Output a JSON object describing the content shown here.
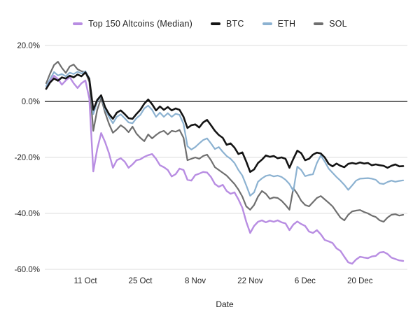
{
  "chart_data": {
    "type": "line",
    "xlabel": "Date",
    "ylabel": "",
    "ylim": [
      -60,
      20
    ],
    "grid": true,
    "legend_position": "top-center",
    "background": "#ffffff",
    "gridline_color": "#dcdcdc",
    "zeroline_color": "#555555",
    "tick_text_color": "#262626",
    "y_ticks": [
      {
        "value": 20,
        "label": "20.0%"
      },
      {
        "value": 0,
        "label": "0.0%"
      },
      {
        "value": -20,
        "label": "-20.0%"
      },
      {
        "value": -40,
        "label": "-40.0%"
      },
      {
        "value": -60,
        "label": "-60.0%"
      }
    ],
    "x_ticks": [
      {
        "day": 10,
        "label": "11 Oct"
      },
      {
        "day": 24,
        "label": "25 Oct"
      },
      {
        "day": 38,
        "label": "8 Nov"
      },
      {
        "day": 52,
        "label": "22 Nov"
      },
      {
        "day": 66,
        "label": "6 Dec"
      },
      {
        "day": 80,
        "label": "20 Dec"
      }
    ],
    "x_range_note": "daily values, day 0 = 1 Oct through day 91 = 31 Dec, percent change",
    "series": [
      {
        "key": "altcoins",
        "name": "Top 150 Altcoins (Median)",
        "color": "#b88de2",
        "width": 2.4,
        "values": [
          4.5,
          7.0,
          9.2,
          8.0,
          6.0,
          7.5,
          8.7,
          6.5,
          4.8,
          6.5,
          7.5,
          1.0,
          -25.0,
          -17.0,
          -11.3,
          -14.5,
          -18.5,
          -23.7,
          -21.0,
          -20.3,
          -21.5,
          -23.7,
          -22.5,
          -21.0,
          -20.7,
          -19.8,
          -19.2,
          -18.8,
          -20.5,
          -22.8,
          -23.5,
          -24.5,
          -26.8,
          -26.0,
          -24.0,
          -24.5,
          -28.0,
          -28.3,
          -26.3,
          -25.8,
          -25.2,
          -25.4,
          -27.0,
          -29.5,
          -30.5,
          -29.8,
          -32.0,
          -33.0,
          -32.5,
          -35.0,
          -38.0,
          -43.0,
          -47.0,
          -44.5,
          -43.0,
          -42.5,
          -43.2,
          -42.6,
          -43.0,
          -42.5,
          -43.2,
          -43.6,
          -46.0,
          -44.0,
          -42.9,
          -43.8,
          -44.5,
          -46.5,
          -47.0,
          -46.0,
          -47.5,
          -49.5,
          -50.0,
          -50.6,
          -52.5,
          -53.4,
          -55.5,
          -57.5,
          -58.0,
          -56.5,
          -55.5,
          -55.8,
          -56.0,
          -55.4,
          -55.2,
          -54.0,
          -53.8,
          -54.5,
          -55.8,
          -56.3,
          -56.8,
          -57.0
        ]
      },
      {
        "key": "btc",
        "name": "BTC",
        "color": "#141414",
        "width": 2.6,
        "values": [
          4.5,
          6.8,
          8.2,
          7.4,
          8.6,
          8.2,
          9.2,
          8.6,
          9.6,
          9.0,
          10.4,
          8.0,
          -3.0,
          0.5,
          2.2,
          -2.0,
          -4.5,
          -6.2,
          -4.0,
          -3.2,
          -4.5,
          -6.0,
          -6.2,
          -4.5,
          -3.0,
          -0.8,
          0.7,
          -1.0,
          -3.2,
          -1.8,
          -3.0,
          -2.0,
          -3.2,
          -2.5,
          -3.0,
          -5.5,
          -9.5,
          -8.5,
          -8.2,
          -9.3,
          -7.5,
          -6.6,
          -8.5,
          -10.5,
          -12.0,
          -13.0,
          -15.5,
          -15.0,
          -16.5,
          -18.8,
          -18.2,
          -21.5,
          -25.2,
          -24.3,
          -22.0,
          -20.8,
          -19.3,
          -19.8,
          -19.5,
          -20.3,
          -20.0,
          -20.5,
          -23.7,
          -20.5,
          -17.6,
          -18.5,
          -21.0,
          -20.5,
          -19.0,
          -18.3,
          -18.6,
          -20.0,
          -22.3,
          -23.2,
          -22.2,
          -23.0,
          -23.5,
          -22.3,
          -22.0,
          -22.3,
          -21.8,
          -22.2,
          -22.0,
          -22.8,
          -22.5,
          -22.8,
          -23.0,
          -23.7,
          -23.0,
          -22.5,
          -23.2,
          -23.1
        ]
      },
      {
        "key": "eth",
        "name": "ETH",
        "color": "#8cb2d1",
        "width": 2.2,
        "values": [
          5.5,
          8.0,
          10.5,
          9.3,
          9.8,
          9.0,
          10.3,
          9.8,
          10.6,
          10.0,
          10.8,
          8.3,
          -4.5,
          0.0,
          2.0,
          -2.8,
          -5.5,
          -7.8,
          -5.5,
          -4.6,
          -6.0,
          -7.5,
          -7.8,
          -6.0,
          -4.8,
          -2.5,
          -1.5,
          -3.0,
          -5.5,
          -4.0,
          -5.5,
          -4.2,
          -5.5,
          -4.4,
          -4.8,
          -8.0,
          -16.0,
          -17.2,
          -16.3,
          -15.0,
          -13.8,
          -13.2,
          -15.0,
          -17.0,
          -16.3,
          -18.0,
          -19.5,
          -20.5,
          -22.0,
          -24.5,
          -26.5,
          -30.0,
          -33.7,
          -32.5,
          -28.7,
          -27.5,
          -26.6,
          -26.3,
          -26.8,
          -26.5,
          -27.0,
          -28.0,
          -29.5,
          -32.0,
          -23.3,
          -24.5,
          -26.7,
          -26.3,
          -26.0,
          -22.0,
          -19.3,
          -21.5,
          -24.0,
          -25.5,
          -27.0,
          -28.3,
          -29.8,
          -31.6,
          -30.0,
          -28.3,
          -27.6,
          -27.5,
          -27.4,
          -27.6,
          -28.0,
          -29.3,
          -29.5,
          -28.8,
          -28.3,
          -28.7,
          -28.4,
          -28.2
        ]
      },
      {
        "key": "sol",
        "name": "SOL",
        "color": "#6f6f6f",
        "width": 2.2,
        "values": [
          6.5,
          10.0,
          13.0,
          14.2,
          12.0,
          10.2,
          12.5,
          13.2,
          11.5,
          10.8,
          10.5,
          7.0,
          -10.5,
          -3.0,
          1.2,
          -4.0,
          -8.0,
          -11.2,
          -10.0,
          -8.5,
          -9.5,
          -11.0,
          -9.0,
          -11.5,
          -13.0,
          -14.2,
          -11.8,
          -13.2,
          -12.0,
          -11.0,
          -10.5,
          -11.8,
          -10.5,
          -10.8,
          -10.2,
          -13.0,
          -21.0,
          -20.5,
          -20.0,
          -20.5,
          -19.5,
          -19.0,
          -21.0,
          -23.5,
          -24.5,
          -25.5,
          -26.5,
          -28.0,
          -29.5,
          -31.5,
          -34.0,
          -37.5,
          -38.7,
          -37.0,
          -34.0,
          -32.0,
          -33.0,
          -34.8,
          -34.3,
          -34.5,
          -35.5,
          -37.0,
          -38.7,
          -31.0,
          -33.0,
          -35.5,
          -37.0,
          -37.5,
          -36.0,
          -34.5,
          -33.8,
          -35.0,
          -36.2,
          -37.5,
          -39.5,
          -41.5,
          -42.5,
          -40.5,
          -39.3,
          -39.0,
          -38.8,
          -39.5,
          -40.0,
          -40.8,
          -41.3,
          -42.5,
          -43.0,
          -41.5,
          -40.5,
          -40.3,
          -40.8,
          -40.5
        ]
      }
    ]
  }
}
